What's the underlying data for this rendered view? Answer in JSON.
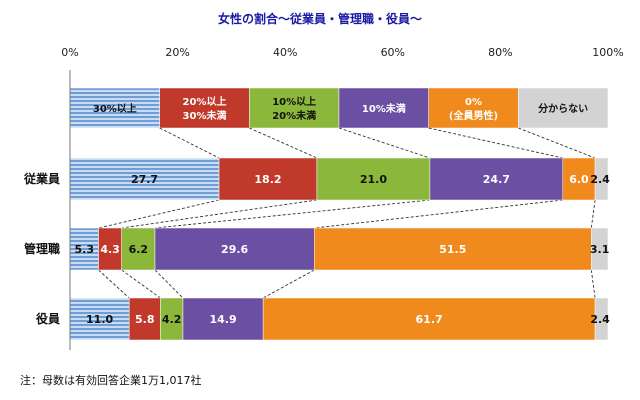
{
  "chart_data": {
    "type": "bar",
    "orientation": "horizontal",
    "stacked": true,
    "percent_scale": true,
    "title": "女性の割合～従業員・管理職・役員～",
    "xlim": [
      0,
      100
    ],
    "x_ticks": [
      "0%",
      "20%",
      "40%",
      "60%",
      "80%",
      "100%"
    ],
    "categories": [
      "従業員",
      "管理職",
      "役員"
    ],
    "series": [
      {
        "name": "30%以上",
        "legend_lines": [
          "30%以上"
        ],
        "color": "#6f9dd6",
        "pattern": "stripes",
        "label_color": "#111111",
        "values": [
          27.7,
          5.3,
          11.0
        ],
        "labels": [
          "27.7",
          "5.3",
          "11.0"
        ]
      },
      {
        "name": "20%以上30%未満",
        "legend_lines": [
          "20%以上",
          "30%未満"
        ],
        "color": "#c0392b",
        "label_color": "#ffffff",
        "values": [
          18.2,
          4.3,
          5.8
        ],
        "labels": [
          "18.2",
          "4.3",
          "5.8"
        ]
      },
      {
        "name": "10%以上20%未満",
        "legend_lines": [
          "10%以上",
          "20%未満"
        ],
        "color": "#8bb83a",
        "label_color": "#111111",
        "values": [
          21.0,
          6.2,
          4.2
        ],
        "labels": [
          "21.0",
          "6.2",
          "4.2"
        ]
      },
      {
        "name": "10%未満",
        "legend_lines": [
          "10%未満"
        ],
        "color": "#6a4fa3",
        "label_color": "#ffffff",
        "values": [
          24.7,
          29.6,
          14.9
        ],
        "labels": [
          "24.7",
          "29.6",
          "14.9"
        ]
      },
      {
        "name": "0%(全員男性)",
        "legend_lines": [
          "0%",
          "(全員男性)"
        ],
        "color": "#f08a1c",
        "label_color": "#ffffff",
        "values": [
          6.0,
          51.5,
          61.7
        ],
        "labels": [
          "6.0",
          "51.5",
          "61.7"
        ]
      },
      {
        "name": "分からない",
        "legend_lines": [
          "分からない"
        ],
        "color": "#d3d3d3",
        "label_color": "#111111",
        "values": [
          2.4,
          3.1,
          2.4
        ],
        "labels": [
          "2.4",
          "3.1",
          "2.4"
        ]
      }
    ],
    "legend_placement": "top, as a stacked bar",
    "connector_lines": "dashed, between bars",
    "grid": false
  },
  "note": "注：母数は有効回答企業1万1,017社",
  "colors": {
    "title": "#1a1aa6",
    "axis": "#777777",
    "connector": "#333333"
  }
}
